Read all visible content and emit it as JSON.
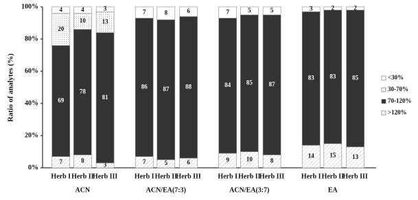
{
  "chart_data": {
    "type": "stacked_bar",
    "y_label": "Ratio of analytes (%)",
    "groups": [
      "ACN",
      "ACN/EA(7:3)",
      "ACN/EA(3:7)",
      "EA"
    ],
    "categories": [
      "Herb I",
      "Herb II",
      "Herb III",
      "Herb I",
      "Herb II",
      "Herb III",
      "Herb I",
      "Herb II",
      "Herb III",
      "Herb I",
      "Herb II",
      "Herb III"
    ],
    "series": [
      {
        "name": ">120%",
        "color": "#ffffff",
        "pattern": "hatch",
        "values": [
          7,
          8,
          3,
          7,
          5,
          6,
          9,
          10,
          8,
          14,
          15,
          13
        ]
      },
      {
        "name": "70-120%",
        "color": "#333333",
        "pattern": "solid",
        "values": [
          69,
          78,
          81,
          86,
          87,
          88,
          84,
          85,
          87,
          83,
          83,
          85
        ]
      },
      {
        "name": "30-70%",
        "color": "#ffffff",
        "pattern": "dots",
        "values": [
          20,
          10,
          13,
          null,
          null,
          null,
          null,
          null,
          null,
          null,
          null,
          null
        ]
      },
      {
        "name": "<30%",
        "color": "#ffffff",
        "pattern": "solid",
        "values": [
          4,
          4,
          3,
          7,
          8,
          6,
          7,
          5,
          5,
          3,
          2,
          2
        ]
      }
    ],
    "ylim": [
      0,
      100
    ],
    "yticks": [
      {
        "value": 0,
        "label": "0%"
      },
      {
        "value": 20,
        "label": "20%"
      },
      {
        "value": 40,
        "label": "40%"
      },
      {
        "value": 60,
        "label": "60%"
      },
      {
        "value": 80,
        "label": "80%"
      },
      {
        "value": 100,
        "label": "100%"
      }
    ],
    "legend": "right"
  }
}
